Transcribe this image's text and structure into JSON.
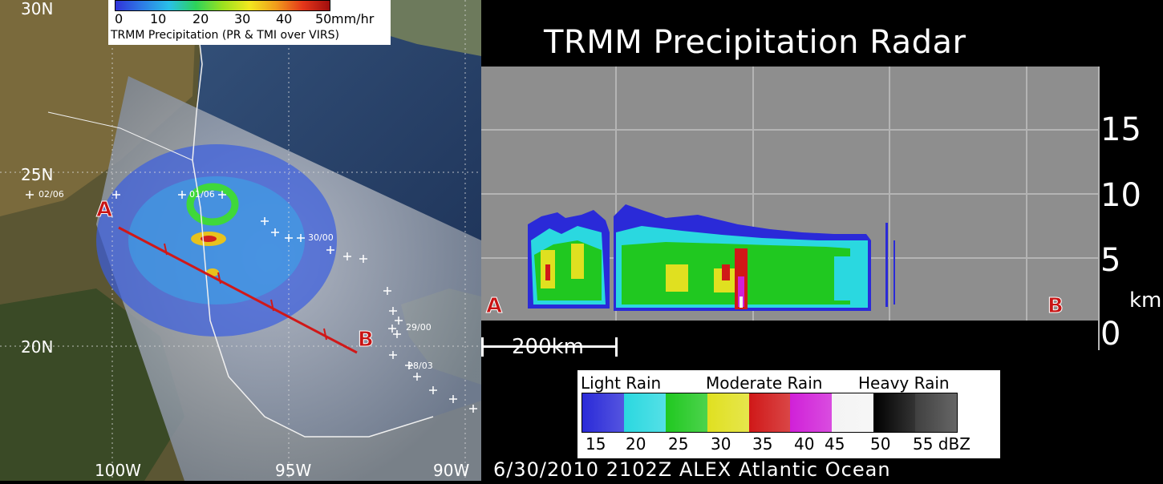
{
  "map": {
    "lat_labels": [
      "30N",
      "25N",
      "20N"
    ],
    "lon_labels": [
      "100W",
      "95W",
      "90W"
    ],
    "track_points": [
      "02/06",
      "01/06",
      "30/00",
      "29/00",
      "28/03"
    ],
    "cross_section_ends": {
      "start": "A",
      "end": "B"
    },
    "rate_legend": {
      "ticks": [
        "0",
        "10",
        "20",
        "30",
        "40",
        "50"
      ],
      "unit": "mm/hr",
      "caption": "TRMM Precipitation  (PR & TMI  over VIRS)"
    },
    "colors": {
      "track_line": "#d01818",
      "endpoint_label": "#c81414"
    }
  },
  "radar": {
    "title": "TRMM Precipitation Radar",
    "y_ticks": [
      "15",
      "10",
      "5",
      "0"
    ],
    "y_unit": "km",
    "end_a": "A",
    "end_b": "B",
    "scale_bar": "200km",
    "dbz_legend": {
      "categories": [
        "Light Rain",
        "Moderate Rain",
        "Heavy Rain"
      ],
      "ticks": [
        "15",
        "20",
        "25",
        "30",
        "35",
        "40",
        "45",
        "50",
        "55 dBZ"
      ],
      "colors": [
        "#2a2ad8",
        "#2ad8e0",
        "#20c820",
        "#e0e020",
        "#d01818",
        "#d020d8",
        "#f4f4f4",
        "#000000",
        "#404040"
      ]
    },
    "timestamp": "6/30/2010   2102Z    ALEX    Atlantic  Ocean"
  },
  "chart_data": {
    "type": "heatmap",
    "title": "TRMM Precipitation Radar",
    "ylabel": "km",
    "yticks": [
      0,
      5,
      10,
      15
    ],
    "ylim": [
      0,
      18
    ],
    "grid": true,
    "color_scale_dbz": [
      15,
      20,
      25,
      30,
      35,
      40,
      45,
      50,
      55
    ],
    "scale_bar_km": 200,
    "echo_top_km_estimated": 7,
    "cross_section": "A to B"
  }
}
